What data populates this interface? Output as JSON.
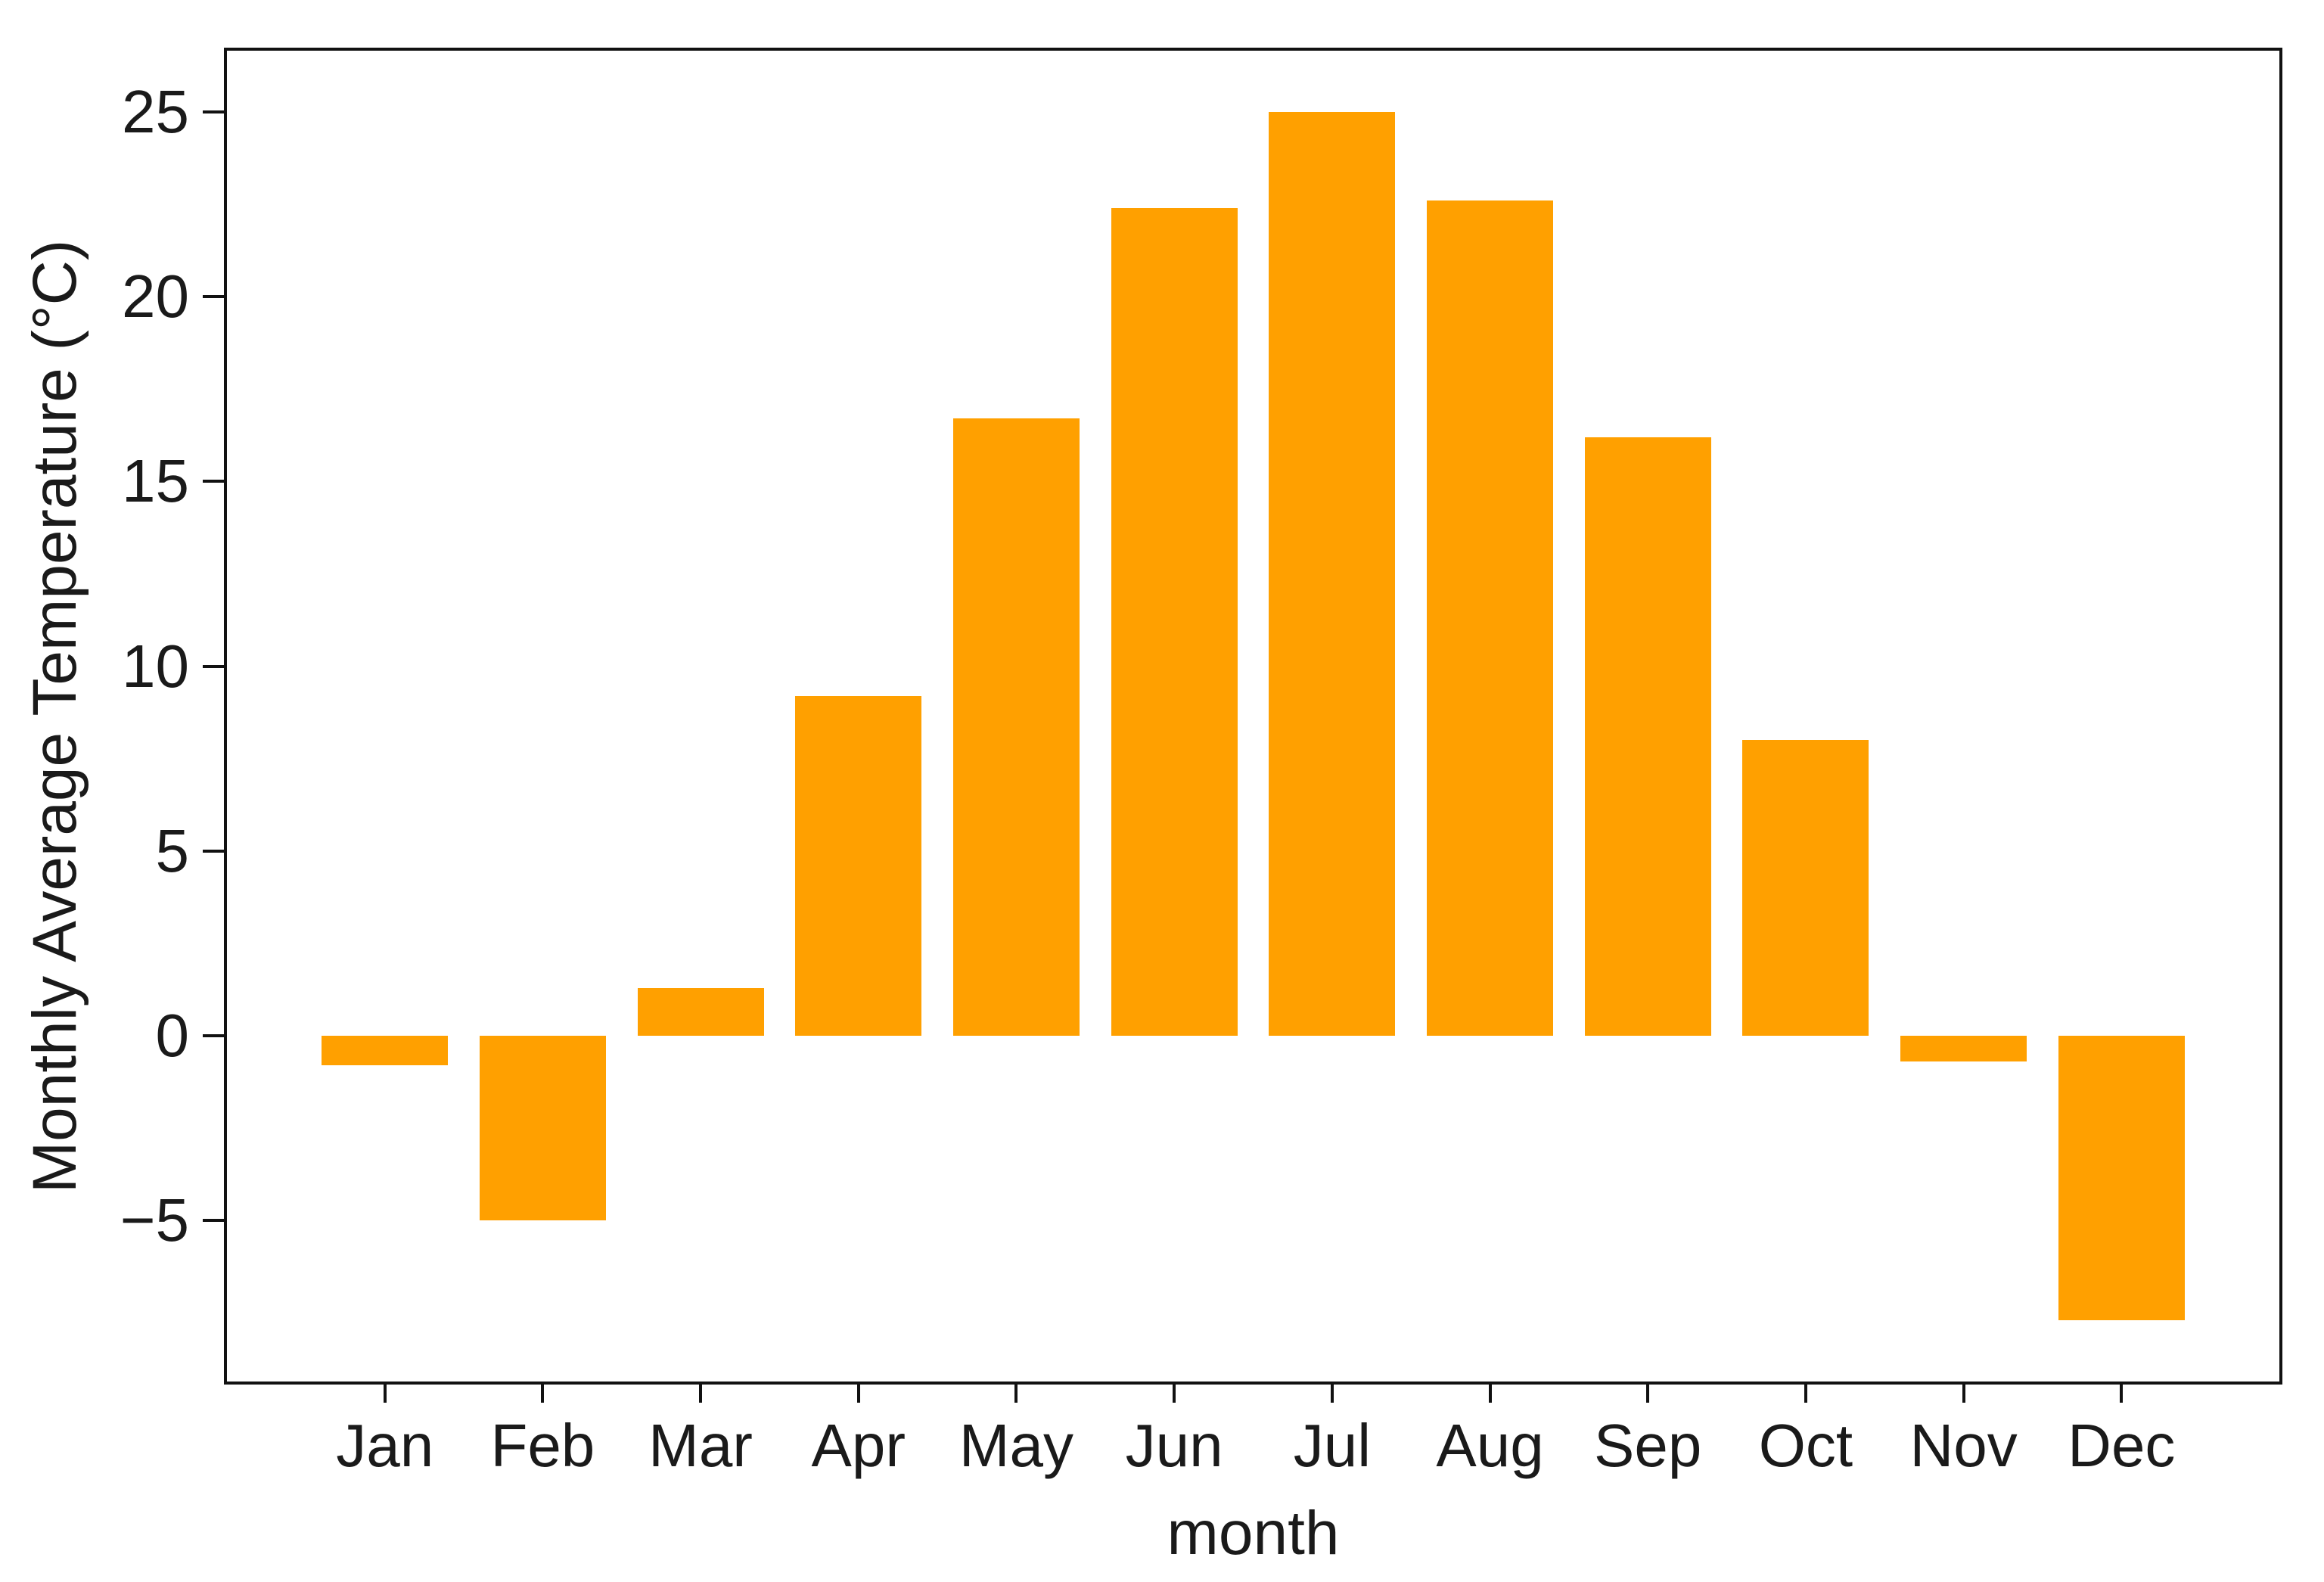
{
  "figure": {
    "background": "#ffffff"
  },
  "chart_data": {
    "type": "bar",
    "title": "",
    "xlabel": "month",
    "ylabel": "Monthly Average Temperature (°C)",
    "categories": [
      "Jan",
      "Feb",
      "Mar",
      "Apr",
      "May",
      "Jun",
      "Jul",
      "Aug",
      "Sep",
      "Oct",
      "Nov",
      "Dec"
    ],
    "values": [
      -0.8,
      -5.0,
      1.3,
      9.2,
      16.7,
      22.4,
      25.0,
      22.6,
      16.2,
      8.0,
      -0.7,
      -7.7
    ],
    "yticks": [
      -5,
      0,
      5,
      10,
      15,
      20,
      25
    ],
    "ylim": [
      -9.35,
      26.65
    ],
    "xlim": [
      -1,
      12
    ],
    "bar_width_fraction": 0.8,
    "bar_color": "#FFA000",
    "axis_color": "#111111",
    "text_color": "#1a1a1a",
    "grid": false,
    "legend": null
  }
}
